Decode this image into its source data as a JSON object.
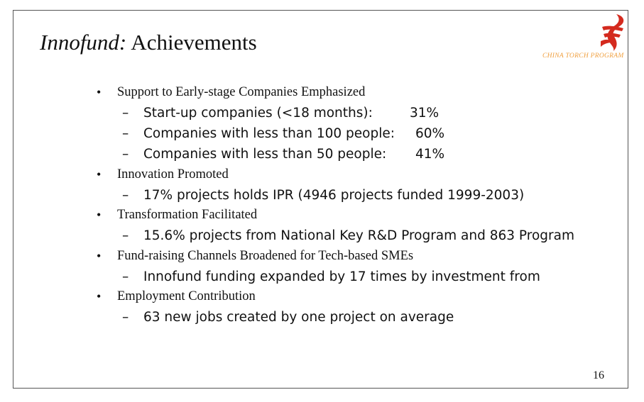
{
  "slide": {
    "title_emph": "Innofund:",
    "title_rest": " Achievements",
    "logo_caption": "CHINA TORCH PROGRAM",
    "page_number": "16",
    "bullet_glyph": "•",
    "dash_glyph": "–"
  },
  "sections": [
    {
      "heading": "Support to Early-stage Companies Emphasized",
      "items": [
        {
          "text": "Start-up companies (<18 months):",
          "value": "31%"
        },
        {
          "text": "Companies with less than 100 people:",
          "value": "60%"
        },
        {
          "text": "Companies with less than 50 people:",
          "value": "41%"
        }
      ]
    },
    {
      "heading": "Innovation Promoted",
      "items": [
        {
          "text": "17% projects  holds IPR (4946 projects funded 1999-2003)"
        }
      ]
    },
    {
      "heading": "Transformation Facilitated",
      "items": [
        {
          "text": "15.6% projects from National Key R&D Program and 863 Program"
        }
      ]
    },
    {
      "heading": "Fund-raising Channels Broadened for Tech-based SMEs",
      "items": [
        {
          "text": "Innofund funding expanded by 17 times by investment from"
        }
      ]
    },
    {
      "heading": "Employment Contribution",
      "items": [
        {
          "text": "63 new jobs created by one project on average"
        }
      ]
    }
  ],
  "colors": {
    "logo_red": "#d42a1e",
    "caption_orange": "#f0a040",
    "text": "#111111"
  },
  "icons": {
    "logo": "china-torch-program-logo-icon"
  }
}
